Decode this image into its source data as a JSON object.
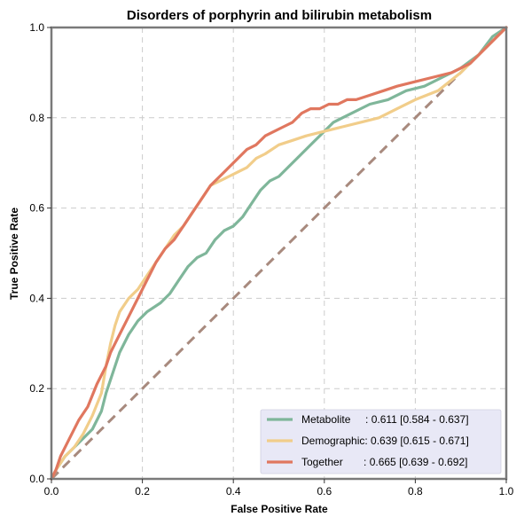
{
  "chart_data": {
    "type": "line",
    "title": "Disorders of porphyrin and bilirubin metabolism",
    "xlabel": "False Positive Rate",
    "ylabel": "True Positive Rate",
    "xlim": [
      0,
      1
    ],
    "ylim": [
      0,
      1
    ],
    "x_ticks": [
      "0.0",
      "0.2",
      "0.4",
      "0.6",
      "0.8",
      "1.0"
    ],
    "y_ticks": [
      "0.0",
      "0.2",
      "0.4",
      "0.6",
      "0.8",
      "1.0"
    ],
    "grid": true,
    "legend_position": "bottom-right",
    "diagonal": {
      "color": "#a88a7e",
      "points": [
        [
          0,
          0
        ],
        [
          1,
          1
        ]
      ]
    },
    "series": [
      {
        "name": "Metabolite",
        "legend_label": "Metabolite     : 0.611 [0.584 - 0.637]",
        "color": "#7fb69a",
        "points": [
          [
            0,
            0
          ],
          [
            0.01,
            0.02
          ],
          [
            0.03,
            0.05
          ],
          [
            0.05,
            0.07
          ],
          [
            0.07,
            0.09
          ],
          [
            0.09,
            0.11
          ],
          [
            0.11,
            0.15
          ],
          [
            0.12,
            0.19
          ],
          [
            0.14,
            0.25
          ],
          [
            0.15,
            0.28
          ],
          [
            0.17,
            0.32
          ],
          [
            0.19,
            0.35
          ],
          [
            0.21,
            0.37
          ],
          [
            0.24,
            0.39
          ],
          [
            0.26,
            0.41
          ],
          [
            0.28,
            0.44
          ],
          [
            0.3,
            0.47
          ],
          [
            0.32,
            0.49
          ],
          [
            0.34,
            0.5
          ],
          [
            0.36,
            0.53
          ],
          [
            0.38,
            0.55
          ],
          [
            0.4,
            0.56
          ],
          [
            0.42,
            0.58
          ],
          [
            0.44,
            0.61
          ],
          [
            0.46,
            0.64
          ],
          [
            0.48,
            0.66
          ],
          [
            0.5,
            0.67
          ],
          [
            0.52,
            0.69
          ],
          [
            0.54,
            0.71
          ],
          [
            0.56,
            0.73
          ],
          [
            0.58,
            0.75
          ],
          [
            0.6,
            0.77
          ],
          [
            0.62,
            0.79
          ],
          [
            0.64,
            0.8
          ],
          [
            0.66,
            0.81
          ],
          [
            0.7,
            0.83
          ],
          [
            0.74,
            0.84
          ],
          [
            0.78,
            0.86
          ],
          [
            0.82,
            0.87
          ],
          [
            0.86,
            0.89
          ],
          [
            0.9,
            0.91
          ],
          [
            0.94,
            0.94
          ],
          [
            0.97,
            0.98
          ],
          [
            1,
            1
          ]
        ]
      },
      {
        "name": "Demographic",
        "legend_label": "Demographic: 0.639 [0.615 - 0.671]",
        "color": "#f1cd8a",
        "points": [
          [
            0,
            0
          ],
          [
            0.01,
            0.02
          ],
          [
            0.03,
            0.05
          ],
          [
            0.05,
            0.07
          ],
          [
            0.07,
            0.1
          ],
          [
            0.09,
            0.14
          ],
          [
            0.11,
            0.19
          ],
          [
            0.12,
            0.25
          ],
          [
            0.13,
            0.3
          ],
          [
            0.14,
            0.34
          ],
          [
            0.15,
            0.37
          ],
          [
            0.17,
            0.4
          ],
          [
            0.19,
            0.42
          ],
          [
            0.21,
            0.45
          ],
          [
            0.23,
            0.48
          ],
          [
            0.25,
            0.51
          ],
          [
            0.27,
            0.54
          ],
          [
            0.29,
            0.56
          ],
          [
            0.31,
            0.59
          ],
          [
            0.33,
            0.62
          ],
          [
            0.35,
            0.65
          ],
          [
            0.37,
            0.66
          ],
          [
            0.39,
            0.67
          ],
          [
            0.41,
            0.68
          ],
          [
            0.43,
            0.69
          ],
          [
            0.45,
            0.71
          ],
          [
            0.47,
            0.72
          ],
          [
            0.5,
            0.74
          ],
          [
            0.53,
            0.75
          ],
          [
            0.56,
            0.76
          ],
          [
            0.6,
            0.77
          ],
          [
            0.64,
            0.78
          ],
          [
            0.68,
            0.79
          ],
          [
            0.72,
            0.8
          ],
          [
            0.76,
            0.82
          ],
          [
            0.8,
            0.84
          ],
          [
            0.85,
            0.86
          ],
          [
            0.9,
            0.9
          ],
          [
            0.95,
            0.95
          ],
          [
            1,
            1
          ]
        ]
      },
      {
        "name": "Together",
        "legend_label": "Together       : 0.665 [0.639 - 0.692]",
        "color": "#e0775f",
        "points": [
          [
            0,
            0
          ],
          [
            0.01,
            0.02
          ],
          [
            0.02,
            0.05
          ],
          [
            0.04,
            0.09
          ],
          [
            0.06,
            0.13
          ],
          [
            0.08,
            0.16
          ],
          [
            0.1,
            0.21
          ],
          [
            0.12,
            0.25
          ],
          [
            0.13,
            0.28
          ],
          [
            0.15,
            0.32
          ],
          [
            0.17,
            0.36
          ],
          [
            0.19,
            0.4
          ],
          [
            0.21,
            0.44
          ],
          [
            0.23,
            0.48
          ],
          [
            0.25,
            0.51
          ],
          [
            0.27,
            0.53
          ],
          [
            0.29,
            0.56
          ],
          [
            0.31,
            0.59
          ],
          [
            0.33,
            0.62
          ],
          [
            0.35,
            0.65
          ],
          [
            0.37,
            0.67
          ],
          [
            0.39,
            0.69
          ],
          [
            0.41,
            0.71
          ],
          [
            0.43,
            0.73
          ],
          [
            0.45,
            0.74
          ],
          [
            0.47,
            0.76
          ],
          [
            0.49,
            0.77
          ],
          [
            0.51,
            0.78
          ],
          [
            0.53,
            0.79
          ],
          [
            0.55,
            0.81
          ],
          [
            0.57,
            0.82
          ],
          [
            0.59,
            0.82
          ],
          [
            0.61,
            0.83
          ],
          [
            0.63,
            0.83
          ],
          [
            0.65,
            0.84
          ],
          [
            0.67,
            0.84
          ],
          [
            0.7,
            0.85
          ],
          [
            0.73,
            0.86
          ],
          [
            0.76,
            0.87
          ],
          [
            0.8,
            0.88
          ],
          [
            0.84,
            0.89
          ],
          [
            0.88,
            0.9
          ],
          [
            0.92,
            0.92
          ],
          [
            0.96,
            0.96
          ],
          [
            1,
            1
          ]
        ]
      }
    ]
  }
}
